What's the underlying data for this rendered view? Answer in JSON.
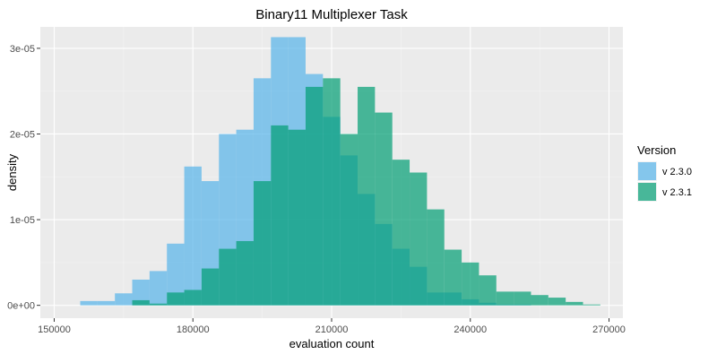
{
  "chart_data": {
    "type": "histogram",
    "title": "Binary11 Multiplexer Task",
    "xlabel": "evaluation count",
    "ylabel": "density",
    "xlim": [
      147000,
      273000
    ],
    "ylim": [
      -1.5e-06,
      3.25e-05
    ],
    "x_ticks": [
      150000,
      180000,
      210000,
      240000,
      270000
    ],
    "x_tick_labels": [
      "150000",
      "180000",
      "210000",
      "240000",
      "270000"
    ],
    "y_ticks": [
      0,
      1e-05,
      2e-05,
      3e-05
    ],
    "y_tick_labels": [
      "0e+00",
      "1e-05",
      "2e-05",
      "3e-05"
    ],
    "grid": true,
    "background": "#EBEBEB",
    "legend": {
      "title": "Version",
      "placement": "right"
    },
    "bin_width": 3750,
    "series": [
      {
        "name": "v 2.3.0",
        "color": "#56B4E9",
        "opacity": 0.7,
        "bins": [
          {
            "x0": 155625,
            "x1": 159375,
            "density": 5e-07
          },
          {
            "x0": 159375,
            "x1": 163125,
            "density": 5e-07
          },
          {
            "x0": 163125,
            "x1": 166875,
            "density": 1.4e-06
          },
          {
            "x0": 166875,
            "x1": 170625,
            "density": 3e-06
          },
          {
            "x0": 170625,
            "x1": 174375,
            "density": 4e-06
          },
          {
            "x0": 174375,
            "x1": 178125,
            "density": 7.2e-06
          },
          {
            "x0": 178125,
            "x1": 181875,
            "density": 1.62e-05
          },
          {
            "x0": 181875,
            "x1": 185625,
            "density": 1.45e-05
          },
          {
            "x0": 185625,
            "x1": 189375,
            "density": 2e-05
          },
          {
            "x0": 189375,
            "x1": 193125,
            "density": 2.05e-05
          },
          {
            "x0": 193125,
            "x1": 196875,
            "density": 2.65e-05
          },
          {
            "x0": 196875,
            "x1": 200625,
            "density": 3.13e-05
          },
          {
            "x0": 200625,
            "x1": 204375,
            "density": 3.13e-05
          },
          {
            "x0": 204375,
            "x1": 208125,
            "density": 2.7e-05
          },
          {
            "x0": 208125,
            "x1": 211875,
            "density": 2.2e-05
          },
          {
            "x0": 211875,
            "x1": 215625,
            "density": 1.75e-05
          },
          {
            "x0": 215625,
            "x1": 219375,
            "density": 1.3e-05
          },
          {
            "x0": 219375,
            "x1": 223125,
            "density": 9.5e-06
          },
          {
            "x0": 223125,
            "x1": 226875,
            "density": 6.6e-06
          },
          {
            "x0": 226875,
            "x1": 230625,
            "density": 4.5e-06
          },
          {
            "x0": 230625,
            "x1": 234375,
            "density": 1.5e-06
          },
          {
            "x0": 234375,
            "x1": 238125,
            "density": 1.5e-06
          },
          {
            "x0": 238125,
            "x1": 241875,
            "density": 7e-07
          },
          {
            "x0": 241875,
            "x1": 245625,
            "density": 3e-07
          },
          {
            "x0": 245625,
            "x1": 249375,
            "density": 1e-07
          },
          {
            "x0": 249375,
            "x1": 253125,
            "density": 1e-07
          }
        ]
      },
      {
        "name": "v 2.3.1",
        "color": "#009E73",
        "opacity": 0.7,
        "bins": [
          {
            "x0": 166875,
            "x1": 170625,
            "density": 6e-07
          },
          {
            "x0": 170625,
            "x1": 174375,
            "density": 2e-07
          },
          {
            "x0": 174375,
            "x1": 178125,
            "density": 1.5e-06
          },
          {
            "x0": 178125,
            "x1": 181875,
            "density": 1.8e-06
          },
          {
            "x0": 181875,
            "x1": 185625,
            "density": 4.3e-06
          },
          {
            "x0": 185625,
            "x1": 189375,
            "density": 6.6e-06
          },
          {
            "x0": 189375,
            "x1": 193125,
            "density": 7.5e-06
          },
          {
            "x0": 193125,
            "x1": 196875,
            "density": 1.45e-05
          },
          {
            "x0": 196875,
            "x1": 200625,
            "density": 2.1e-05
          },
          {
            "x0": 200625,
            "x1": 204375,
            "density": 2.05e-05
          },
          {
            "x0": 204375,
            "x1": 208125,
            "density": 2.55e-05
          },
          {
            "x0": 208125,
            "x1": 211875,
            "density": 2.65e-05
          },
          {
            "x0": 211875,
            "x1": 215625,
            "density": 2e-05
          },
          {
            "x0": 215625,
            "x1": 219375,
            "density": 2.55e-05
          },
          {
            "x0": 219375,
            "x1": 223125,
            "density": 2.25e-05
          },
          {
            "x0": 223125,
            "x1": 226875,
            "density": 1.7e-05
          },
          {
            "x0": 226875,
            "x1": 230625,
            "density": 1.55e-05
          },
          {
            "x0": 230625,
            "x1": 234375,
            "density": 1.12e-05
          },
          {
            "x0": 234375,
            "x1": 238125,
            "density": 6.5e-06
          },
          {
            "x0": 238125,
            "x1": 241875,
            "density": 5e-06
          },
          {
            "x0": 241875,
            "x1": 245625,
            "density": 3.5e-06
          },
          {
            "x0": 245625,
            "x1": 249375,
            "density": 1.6e-06
          },
          {
            "x0": 249375,
            "x1": 253125,
            "density": 1.6e-06
          },
          {
            "x0": 253125,
            "x1": 256875,
            "density": 1.2e-06
          },
          {
            "x0": 256875,
            "x1": 260625,
            "density": 9e-07
          },
          {
            "x0": 260625,
            "x1": 264375,
            "density": 4e-07
          },
          {
            "x0": 264375,
            "x1": 268125,
            "density": 1e-07
          }
        ]
      }
    ]
  }
}
